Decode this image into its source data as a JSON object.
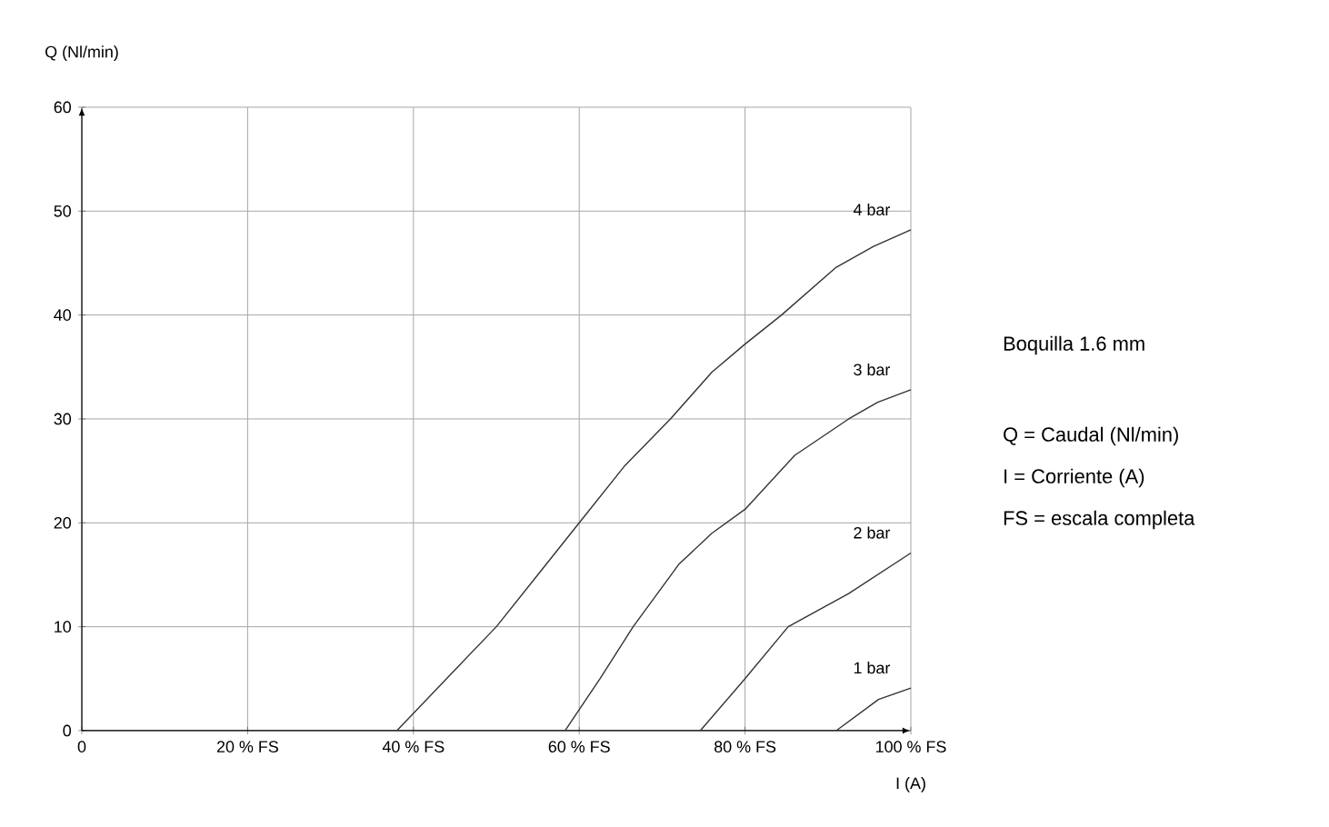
{
  "chart_data": {
    "type": "line",
    "xlabel": "I (A)",
    "ylabel": "Q (Nl/min)",
    "xlim": [
      0,
      100
    ],
    "ylim": [
      0,
      60
    ],
    "xticks": [
      0,
      {
        "value": 20,
        "label": "20 % FS"
      },
      {
        "value": 40,
        "label": "40 % FS"
      },
      {
        "value": 60,
        "label": "60 % FS"
      },
      {
        "value": 80,
        "label": "80 % FS"
      },
      {
        "value": 100,
        "label": "100 % FS"
      }
    ],
    "yticks": [
      0,
      10,
      20,
      30,
      40,
      50,
      60
    ],
    "grid": true,
    "legend": false,
    "marker": "none",
    "line_style": "solid",
    "series": [
      {
        "name": "4 bar",
        "color": "#333333",
        "x": [
          38,
          44,
          50,
          55,
          60,
          65.5,
          71,
          76,
          80,
          84.4,
          91,
          95.5,
          100
        ],
        "values": [
          0,
          5,
          10,
          15,
          20,
          25.5,
          30,
          34.5,
          37.2,
          40,
          44.6,
          46.6,
          48.2
        ]
      },
      {
        "name": "3 bar",
        "color": "#333333",
        "x": [
          58.3,
          62.5,
          66.5,
          72,
          76,
          80,
          86,
          92.5,
          96,
          100
        ],
        "values": [
          0,
          5,
          10,
          16,
          19,
          21.3,
          26.5,
          30,
          31.6,
          32.8
        ]
      },
      {
        "name": "2 bar",
        "color": "#333333",
        "x": [
          74.6,
          80,
          85.2,
          92.5,
          100
        ],
        "values": [
          0,
          5,
          10,
          13.2,
          17.1
        ]
      },
      {
        "name": "1 bar",
        "color": "#333333",
        "x": [
          91,
          96.1,
          100
        ],
        "values": [
          0,
          3,
          4.1
        ]
      }
    ],
    "annotations": [
      "Boquilla 1.6 mm",
      "Q = Caudal (Nl/min)",
      "I = Corriente (A)",
      "FS = escala completa"
    ]
  }
}
